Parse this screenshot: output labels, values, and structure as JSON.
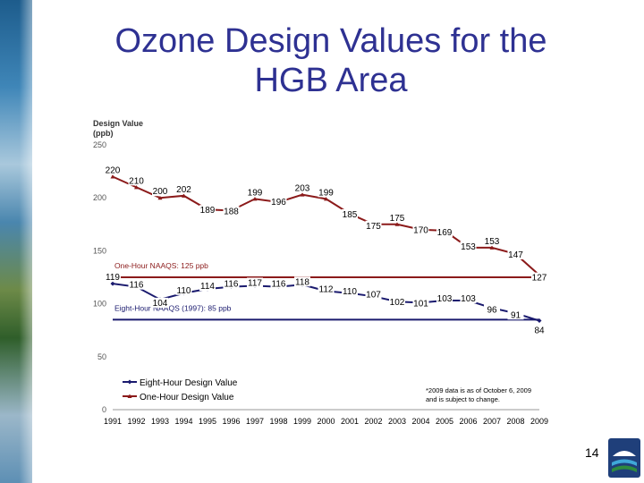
{
  "slide": {
    "title_line1": "Ozone Design Values for the",
    "title_line2": "HGB Area",
    "page_number": "14"
  },
  "colors": {
    "title": "#2e3192",
    "eight_hour": "#1a1a6e",
    "one_hour": "#8b1a1a"
  },
  "chart_data": {
    "type": "line",
    "ylabel_line1": "Design Value",
    "ylabel_line2": "(ppb)",
    "ylim": [
      0,
      250
    ],
    "yticks": [
      0,
      50,
      100,
      150,
      200,
      250
    ],
    "x": [
      1991,
      1992,
      1993,
      1994,
      1995,
      1996,
      1997,
      1998,
      1999,
      2000,
      2001,
      2002,
      2003,
      2004,
      2005,
      2006,
      2007,
      2008,
      2009
    ],
    "grid": false,
    "legend_position": "bottom-left",
    "series": [
      {
        "name": "Eight-Hour Design Value",
        "marker": "diamond",
        "values": [
          119,
          116,
          104,
          110,
          114,
          116,
          117,
          116,
          118,
          112,
          110,
          107,
          102,
          101,
          103,
          103,
          96,
          91,
          84
        ]
      },
      {
        "name": "One-Hour Design Value",
        "marker": "triangle",
        "values": [
          220,
          210,
          200,
          202,
          189,
          188,
          199,
          196,
          203,
          199,
          185,
          175,
          175,
          170,
          169,
          153,
          153,
          147,
          127
        ]
      }
    ],
    "reference_lines": [
      {
        "label": "One-Hour NAAQS: 125 ppb",
        "value": 125,
        "series": "one_hour"
      },
      {
        "label": "Eight-Hour NAAQS (1997): 85 ppb",
        "value": 85,
        "series": "eight_hour"
      }
    ],
    "footnote_line1": "*2009 data is as of October 6, 2009",
    "footnote_line2": "and is subject to change."
  }
}
